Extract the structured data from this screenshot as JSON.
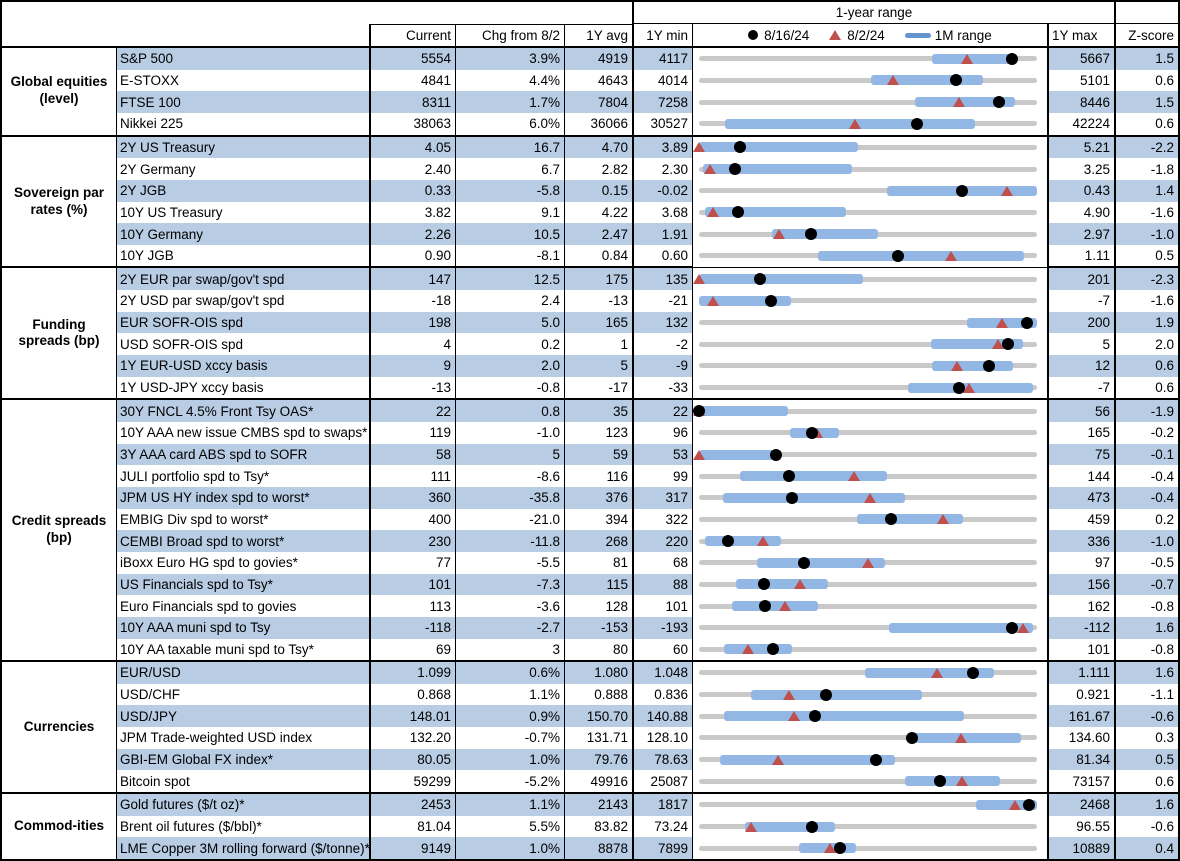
{
  "header": {
    "range_title": "1-year range",
    "columns": {
      "current": "Current",
      "chg": "Chg from 8/2",
      "avg": "1Y avg",
      "min": "1Y min",
      "max": "1Y max",
      "z": "Z-score"
    },
    "legend": {
      "dot_label": "8/16/24",
      "triangle_label": "8/2/24",
      "bar_label": "1M range"
    }
  },
  "colors": {
    "stripe": "#b8cce4",
    "bar_blue": "#92b7e4",
    "legend_blue": "#6495cf",
    "triangle_red": "#c0504d",
    "track_gray": "#c9c9c9",
    "dot_black": "#000000"
  },
  "chart_data": {
    "type": "table",
    "description": "Market monitor table; each row shows Current, Chg from 8/2, 1Y avg, 1Y min, a 1-year range strip (gray = 1Y range, blue bar = 1M range, black dot = 8/16/24 level, red triangle = 8/2/24 level), 1Y max and Z-score.",
    "sections": [
      {
        "category": "Global equities (level)",
        "rows": [
          {
            "label": "S&P 500",
            "current": "5554",
            "chg": "3.9%",
            "avg": "4919",
            "min": "4117",
            "max": "5667",
            "z": "1.5",
            "range": {
              "min": 4117,
              "max": 5667,
              "dot": 5554,
              "tri": 5346,
              "m_lo": 5187,
              "m_hi": 5566
            }
          },
          {
            "label": "E-STOXX",
            "current": "4841",
            "chg": "4.4%",
            "avg": "4643",
            "min": "4014",
            "max": "5101",
            "z": "0.6",
            "range": {
              "min": 4014,
              "max": 5101,
              "dot": 4841,
              "tri": 4637,
              "m_lo": 4568,
              "m_hi": 4927
            }
          },
          {
            "label": "FTSE 100",
            "current": "8311",
            "chg": "1.7%",
            "avg": "7804",
            "min": "7258",
            "max": "8446",
            "z": "1.5",
            "range": {
              "min": 7258,
              "max": 8446,
              "dot": 8311,
              "tri": 8172,
              "m_lo": 8018,
              "m_hi": 8369
            }
          },
          {
            "label": "Nikkei 225",
            "current": "38063",
            "chg": "6.0%",
            "avg": "36066",
            "min": "30527",
            "max": "42224",
            "z": "0.6",
            "range": {
              "min": 30527,
              "max": 42224,
              "dot": 38063,
              "tri": 35909,
              "m_lo": 31440,
              "m_hi": 40080
            }
          }
        ]
      },
      {
        "category": "Sovereign par rates (%)",
        "rows": [
          {
            "label": "2Y US Treasury",
            "current": "4.05",
            "chg": "16.7",
            "avg": "4.70",
            "min": "3.89",
            "max": "5.21",
            "z": "-2.2",
            "range": {
              "min": 3.89,
              "max": 5.21,
              "dot": 4.05,
              "tri": 3.88,
              "m_lo": 3.89,
              "m_hi": 4.51
            }
          },
          {
            "label": "2Y Germany",
            "current": "2.40",
            "chg": "6.7",
            "avg": "2.82",
            "min": "2.30",
            "max": "3.25",
            "z": "-1.8",
            "range": {
              "min": 2.3,
              "max": 3.25,
              "dot": 2.4,
              "tri": 2.33,
              "m_lo": 2.31,
              "m_hi": 2.73
            }
          },
          {
            "label": "2Y JGB",
            "current": "0.33",
            "chg": "-5.8",
            "avg": "0.15",
            "min": "-0.02",
            "max": "0.43",
            "z": "1.4",
            "range": {
              "min": -0.02,
              "max": 0.43,
              "dot": 0.33,
              "tri": 0.39,
              "m_lo": 0.23,
              "m_hi": 0.43
            }
          },
          {
            "label": "10Y US Treasury",
            "current": "3.82",
            "chg": "9.1",
            "avg": "4.22",
            "min": "3.68",
            "max": "4.90",
            "z": "-1.6",
            "range": {
              "min": 3.68,
              "max": 4.9,
              "dot": 3.82,
              "tri": 3.73,
              "m_lo": 3.7,
              "m_hi": 4.21
            }
          },
          {
            "label": "10Y Germany",
            "current": "2.26",
            "chg": "10.5",
            "avg": "2.47",
            "min": "1.91",
            "max": "2.97",
            "z": "-1.0",
            "range": {
              "min": 1.91,
              "max": 2.97,
              "dot": 2.26,
              "tri": 2.16,
              "m_lo": 2.14,
              "m_hi": 2.47
            }
          },
          {
            "label": "10Y JGB",
            "current": "0.90",
            "chg": "-8.1",
            "avg": "0.84",
            "min": "0.60",
            "max": "1.11",
            "z": "0.5",
            "range": {
              "min": 0.6,
              "max": 1.11,
              "dot": 0.9,
              "tri": 0.98,
              "m_lo": 0.78,
              "m_hi": 1.09
            }
          }
        ]
      },
      {
        "category": "Funding spreads (bp)",
        "rows": [
          {
            "label": "2Y EUR par swap/gov't spd",
            "current": "147",
            "chg": "12.5",
            "avg": "175",
            "min": "135",
            "max": "201",
            "z": "-2.3",
            "range": {
              "min": 135,
              "max": 201,
              "dot": 147,
              "tri": 134.5,
              "m_lo": 135,
              "m_hi": 167
            }
          },
          {
            "label": "2Y USD par swap/gov't spd",
            "current": "-18",
            "chg": "2.4",
            "avg": "-13",
            "min": "-21",
            "max": "-7",
            "z": "-1.6",
            "range": {
              "min": -21,
              "max": -7,
              "dot": -18,
              "tri": -20.4,
              "m_lo": -21,
              "m_hi": -17.2
            }
          },
          {
            "label": "EUR SOFR-OIS spd",
            "current": "198",
            "chg": "5.0",
            "avg": "165",
            "min": "132",
            "max": "200",
            "z": "1.9",
            "range": {
              "min": 132,
              "max": 200,
              "dot": 198,
              "tri": 193,
              "m_lo": 186,
              "m_hi": 200
            }
          },
          {
            "label": "USD SOFR-OIS spd",
            "current": "4",
            "chg": "0.2",
            "avg": "1",
            "min": "-2",
            "max": "5",
            "z": "2.0",
            "range": {
              "min": -2,
              "max": 5,
              "dot": 4.4,
              "tri": 4.2,
              "m_lo": 2.8,
              "m_hi": 4.7
            }
          },
          {
            "label": "1Y EUR-USD xccy basis",
            "current": "9",
            "chg": "2.0",
            "avg": "5",
            "min": "-9",
            "max": "12",
            "z": "0.6",
            "range": {
              "min": -9,
              "max": 12,
              "dot": 9,
              "tri": 7,
              "m_lo": 5.5,
              "m_hi": 10.5
            }
          },
          {
            "label": "1Y USD-JPY xccy basis",
            "current": "-13",
            "chg": "-0.8",
            "avg": "-17",
            "min": "-33",
            "max": "-7",
            "z": "0.6",
            "range": {
              "min": -33,
              "max": -7,
              "dot": -13,
              "tri": -12.2,
              "m_lo": -16.9,
              "m_hi": -7.3
            }
          }
        ]
      },
      {
        "category": "Credit spreads (bp)",
        "rows": [
          {
            "label": "30Y FNCL 4.5% Front Tsy OAS*",
            "current": "22",
            "chg": "0.8",
            "avg": "35",
            "min": "22",
            "max": "56",
            "z": "-1.9",
            "range": {
              "min": 22,
              "max": 56,
              "dot": 22,
              "tri": 21.2,
              "m_lo": 22,
              "m_hi": 31
            }
          },
          {
            "label": "10Y AAA new issue CMBS spd to swaps*",
            "current": "119",
            "chg": "-1.0",
            "avg": "123",
            "min": "96",
            "max": "165",
            "z": "-0.2",
            "range": {
              "min": 96,
              "max": 165,
              "dot": 119,
              "tri": 120,
              "m_lo": 114.5,
              "m_hi": 124.5
            }
          },
          {
            "label": "3Y AAA card ABS spd to SOFR",
            "current": "58",
            "chg": "5",
            "avg": "59",
            "min": "53",
            "max": "75",
            "z": "-0.1",
            "range": {
              "min": 53,
              "max": 75,
              "dot": 58,
              "tri": 53,
              "m_lo": 53,
              "m_hi": 58
            }
          },
          {
            "label": "JULI portfolio spd to Tsy*",
            "current": "111",
            "chg": "-8.6",
            "avg": "116",
            "min": "99",
            "max": "144",
            "z": "-0.4",
            "range": {
              "min": 99,
              "max": 144,
              "dot": 111,
              "tri": 119.6,
              "m_lo": 104.5,
              "m_hi": 124
            }
          },
          {
            "label": "JPM US HY index spd to worst*",
            "current": "360",
            "chg": "-35.8",
            "avg": "376",
            "min": "317",
            "max": "473",
            "z": "-0.4",
            "range": {
              "min": 317,
              "max": 473,
              "dot": 360,
              "tri": 395.8,
              "m_lo": 328,
              "m_hi": 412
            }
          },
          {
            "label": "EMBIG Div spd to worst*",
            "current": "400",
            "chg": "-21.0",
            "avg": "394",
            "min": "322",
            "max": "459",
            "z": "0.2",
            "range": {
              "min": 322,
              "max": 459,
              "dot": 400,
              "tri": 421,
              "m_lo": 386,
              "m_hi": 429
            }
          },
          {
            "label": "CEMBI Broad spd to worst*",
            "current": "230",
            "chg": "-11.8",
            "avg": "268",
            "min": "220",
            "max": "336",
            "z": "-1.0",
            "range": {
              "min": 220,
              "max": 336,
              "dot": 230,
              "tri": 241.8,
              "m_lo": 222,
              "m_hi": 248
            }
          },
          {
            "label": "iBoxx Euro HG spd to govies*",
            "current": "77",
            "chg": "-5.5",
            "avg": "81",
            "min": "68",
            "max": "97",
            "z": "-0.5",
            "range": {
              "min": 68,
              "max": 97,
              "dot": 77,
              "tri": 82.5,
              "m_lo": 73,
              "m_hi": 84
            }
          },
          {
            "label": "US Financials spd to Tsy*",
            "current": "101",
            "chg": "-7.3",
            "avg": "115",
            "min": "88",
            "max": "156",
            "z": "-0.7",
            "range": {
              "min": 88,
              "max": 156,
              "dot": 101,
              "tri": 108.3,
              "m_lo": 95.5,
              "m_hi": 114
            }
          },
          {
            "label": "Euro Financials spd to govies",
            "current": "113",
            "chg": "-3.6",
            "avg": "128",
            "min": "101",
            "max": "162",
            "z": "-0.8",
            "range": {
              "min": 101,
              "max": 162,
              "dot": 113,
              "tri": 116.6,
              "m_lo": 107,
              "m_hi": 122.5
            }
          },
          {
            "label": "10Y AAA muni spd to Tsy",
            "current": "-118",
            "chg": "-2.7",
            "avg": "-153",
            "min": "-193",
            "max": "-112",
            "z": "1.6",
            "range": {
              "min": -193,
              "max": -112,
              "dot": -118,
              "tri": -115.3,
              "m_lo": -147.5,
              "m_hi": -113
            }
          },
          {
            "label": "10Y AA taxable muni spd to Tsy*",
            "current": "69",
            "chg": "3",
            "avg": "80",
            "min": "60",
            "max": "101",
            "z": "-0.8",
            "range": {
              "min": 60,
              "max": 101,
              "dot": 69,
              "tri": 66,
              "m_lo": 63,
              "m_hi": 71.3
            }
          }
        ]
      },
      {
        "category": "Currencies",
        "rows": [
          {
            "label": "EUR/USD",
            "current": "1.099",
            "chg": "0.6%",
            "avg": "1.080",
            "min": "1.048",
            "max": "1.111",
            "z": "1.6",
            "range": {
              "min": 1.048,
              "max": 1.111,
              "dot": 1.099,
              "tri": 1.0924,
              "m_lo": 1.079,
              "m_hi": 1.103
            }
          },
          {
            "label": "USD/CHF",
            "current": "0.868",
            "chg": "1.1%",
            "avg": "0.888",
            "min": "0.836",
            "max": "0.921",
            "z": "-1.1",
            "range": {
              "min": 0.836,
              "max": 0.921,
              "dot": 0.868,
              "tri": 0.8586,
              "m_lo": 0.849,
              "m_hi": 0.892
            }
          },
          {
            "label": "USD/JPY",
            "current": "148.01",
            "chg": "0.9%",
            "avg": "150.70",
            "min": "140.88",
            "max": "161.67",
            "z": "-0.6",
            "range": {
              "min": 140.88,
              "max": 161.67,
              "dot": 148.01,
              "tri": 146.7,
              "m_lo": 142.4,
              "m_hi": 157.2
            }
          },
          {
            "label": "JPM Trade-weighted USD index",
            "current": "132.20",
            "chg": "-0.7%",
            "avg": "131.71",
            "min": "128.10",
            "max": "134.60",
            "z": "0.3",
            "range": {
              "min": 128.1,
              "max": 134.6,
              "dot": 132.2,
              "tri": 133.13,
              "m_lo": 132.2,
              "m_hi": 134.3
            }
          },
          {
            "label": "GBI-EM Global FX index*",
            "current": "80.05",
            "chg": "1.0%",
            "avg": "79.76",
            "min": "78.63",
            "max": "81.34",
            "z": "0.5",
            "range": {
              "min": 78.63,
              "max": 81.34,
              "dot": 80.05,
              "tri": 79.26,
              "m_lo": 78.8,
              "m_hi": 80.2
            }
          },
          {
            "label": "Bitcoin spot",
            "current": "59299",
            "chg": "-5.2%",
            "avg": "49916",
            "min": "25087",
            "max": "73157",
            "z": "0.6",
            "range": {
              "min": 25087,
              "max": 73157,
              "dot": 59299,
              "tri": 62552,
              "m_lo": 54400,
              "m_hi": 67900
            }
          }
        ]
      },
      {
        "category": "Commod-ities",
        "rows": [
          {
            "label": "Gold futures ($/t oz)*",
            "current": "2453",
            "chg": "1.1%",
            "avg": "2143",
            "min": "1817",
            "max": "2468",
            "z": "1.6",
            "range": {
              "min": 1817,
              "max": 2468,
              "dot": 2453,
              "tri": 2426,
              "m_lo": 2351,
              "m_hi": 2468
            }
          },
          {
            "label": "Brent oil futures ($/bbl)*",
            "current": "81.04",
            "chg": "5.5%",
            "avg": "83.82",
            "min": "73.24",
            "max": "96.55",
            "z": "-0.6",
            "range": {
              "min": 73.24,
              "max": 96.55,
              "dot": 81.04,
              "tri": 76.82,
              "m_lo": 76.4,
              "m_hi": 82.6
            }
          },
          {
            "label": "LME Copper 3M rolling forward ($/tonne)*",
            "current": "9149",
            "chg": "1.0%",
            "avg": "8878",
            "min": "7899",
            "max": "10889",
            "z": "0.4",
            "range": {
              "min": 7899,
              "max": 10889,
              "dot": 9149,
              "tri": 9058,
              "m_lo": 8780,
              "m_hi": 9290
            }
          }
        ]
      }
    ]
  }
}
